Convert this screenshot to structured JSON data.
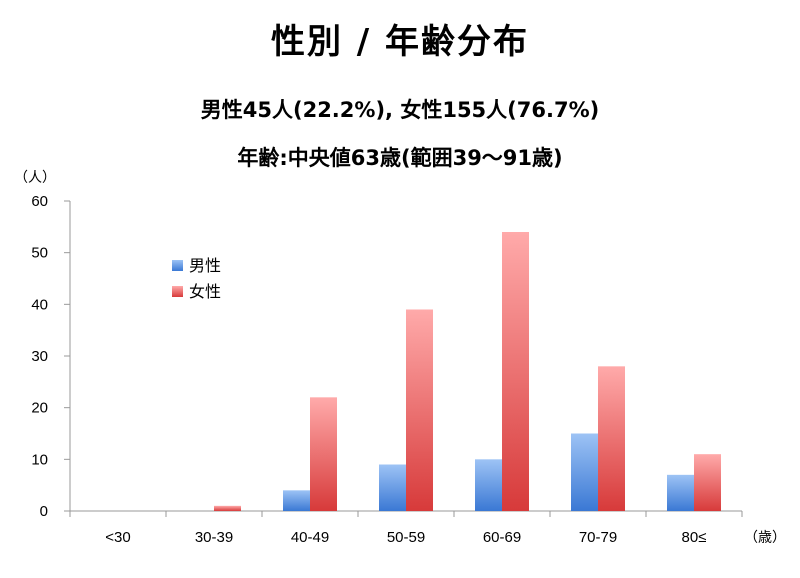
{
  "title": "性別 / 年齢分布",
  "subtitle1": "男性45人(22.2%), 女性155人(76.7%)",
  "subtitle2": "年齢:中央値63歳(範囲39〜91歳)",
  "colors": {
    "male_top": "#9dc3f5",
    "male_bottom": "#3a78d4",
    "female_top": "#ffaaaa",
    "female_bottom": "#d73a3a",
    "axis": "#999999"
  },
  "chart_data": {
    "type": "bar",
    "categories": [
      "<30",
      "30-39",
      "40-49",
      "50-59",
      "60-69",
      "70-79",
      "80≤"
    ],
    "series": [
      {
        "name": "男性",
        "values": [
          0,
          0,
          4,
          9,
          10,
          15,
          7
        ]
      },
      {
        "name": "女性",
        "values": [
          0,
          1,
          22,
          39,
          54,
          28,
          11
        ]
      }
    ],
    "ylim": [
      0,
      60
    ],
    "yticks": [
      0,
      10,
      20,
      30,
      40,
      50,
      60
    ],
    "ylabel": "（人）",
    "xlabel": "（歳）",
    "legend_position": "top-left",
    "grid": false
  }
}
